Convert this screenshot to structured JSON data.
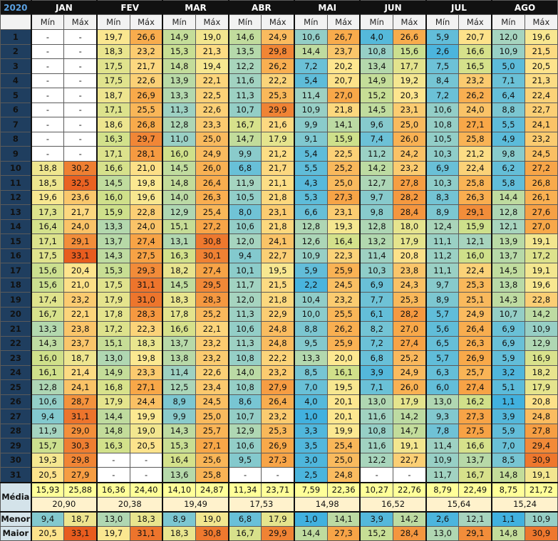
{
  "year": "2020",
  "months": [
    "JAN",
    "FEV",
    "MAR",
    "ABR",
    "MAI",
    "JUN",
    "JUL",
    "AGO"
  ],
  "sub_labels": {
    "min": "Mín",
    "max": "Máx"
  },
  "days": [
    [
      [
        "-",
        "-"
      ],
      [
        "19,7",
        "26,6"
      ],
      [
        "14,9",
        "19,0"
      ],
      [
        "14,6",
        "24,9"
      ],
      [
        "10,6",
        "26,7"
      ],
      [
        "4,0",
        "26,6"
      ],
      [
        "5,9",
        "20,7"
      ],
      [
        "12,0",
        "19,6"
      ]
    ],
    [
      [
        "-",
        "-"
      ],
      [
        "18,3",
        "23,2"
      ],
      [
        "15,3",
        "21,3"
      ],
      [
        "13,5",
        "29,8"
      ],
      [
        "14,4",
        "23,7"
      ],
      [
        "10,8",
        "15,6"
      ],
      [
        "2,6",
        "16,6"
      ],
      [
        "10,9",
        "21,5"
      ]
    ],
    [
      [
        "-",
        "-"
      ],
      [
        "17,5",
        "21,7"
      ],
      [
        "14,8",
        "19,4"
      ],
      [
        "12,2",
        "26,2"
      ],
      [
        "7,2",
        "20,2"
      ],
      [
        "13,4",
        "17,7"
      ],
      [
        "7,5",
        "16,5"
      ],
      [
        "5,0",
        "20,5"
      ]
    ],
    [
      [
        "-",
        "-"
      ],
      [
        "17,5",
        "22,6"
      ],
      [
        "13,9",
        "22,1"
      ],
      [
        "11,6",
        "22,2"
      ],
      [
        "5,4",
        "20,7"
      ],
      [
        "14,9",
        "19,2"
      ],
      [
        "8,4",
        "23,2"
      ],
      [
        "7,1",
        "21,3"
      ]
    ],
    [
      [
        "-",
        "-"
      ],
      [
        "18,7",
        "26,9"
      ],
      [
        "13,3",
        "22,5"
      ],
      [
        "11,3",
        "25,3"
      ],
      [
        "11,4",
        "27,0"
      ],
      [
        "15,2",
        "20,3"
      ],
      [
        "7,2",
        "26,2"
      ],
      [
        "6,4",
        "22,4"
      ]
    ],
    [
      [
        "-",
        "-"
      ],
      [
        "17,1",
        "25,5"
      ],
      [
        "11,3",
        "22,6"
      ],
      [
        "10,7",
        "29,9"
      ],
      [
        "10,9",
        "21,8"
      ],
      [
        "14,5",
        "23,1"
      ],
      [
        "10,6",
        "24,0"
      ],
      [
        "8,8",
        "22,7"
      ]
    ],
    [
      [
        "-",
        "-"
      ],
      [
        "18,6",
        "26,8"
      ],
      [
        "12,8",
        "23,3"
      ],
      [
        "16,7",
        "21,6"
      ],
      [
        "9,9",
        "14,1"
      ],
      [
        "9,6",
        "25,0"
      ],
      [
        "10,8",
        "27,1"
      ],
      [
        "5,5",
        "24,1"
      ]
    ],
    [
      [
        "-",
        "-"
      ],
      [
        "16,3",
        "29,7"
      ],
      [
        "11,0",
        "25,0"
      ],
      [
        "14,7",
        "17,9"
      ],
      [
        "9,1",
        "15,9"
      ],
      [
        "7,4",
        "26,0"
      ],
      [
        "10,5",
        "25,8"
      ],
      [
        "4,9",
        "23,2"
      ]
    ],
    [
      [
        "-",
        "-"
      ],
      [
        "17,1",
        "28,1"
      ],
      [
        "16,0",
        "24,9"
      ],
      [
        "9,9",
        "21,2"
      ],
      [
        "5,4",
        "22,5"
      ],
      [
        "11,2",
        "24,2"
      ],
      [
        "10,3",
        "21,2"
      ],
      [
        "9,8",
        "24,5"
      ]
    ],
    [
      [
        "18,8",
        "30,2"
      ],
      [
        "16,6",
        "21,0"
      ],
      [
        "14,5",
        "26,0"
      ],
      [
        "6,8",
        "21,7"
      ],
      [
        "5,5",
        "25,2"
      ],
      [
        "14,2",
        "23,2"
      ],
      [
        "6,9",
        "22,4"
      ],
      [
        "6,2",
        "27,2"
      ]
    ],
    [
      [
        "18,5",
        "32,5"
      ],
      [
        "14,5",
        "19,8"
      ],
      [
        "14,8",
        "26,4"
      ],
      [
        "11,9",
        "21,1"
      ],
      [
        "4,3",
        "25,0"
      ],
      [
        "12,7",
        "27,8"
      ],
      [
        "10,3",
        "25,8"
      ],
      [
        "5,8",
        "26,8"
      ]
    ],
    [
      [
        "19,6",
        "23,6"
      ],
      [
        "16,0",
        "19,6"
      ],
      [
        "14,0",
        "26,3"
      ],
      [
        "10,5",
        "21,8"
      ],
      [
        "5,3",
        "27,3"
      ],
      [
        "9,7",
        "28,2"
      ],
      [
        "8,3",
        "26,3"
      ],
      [
        "14,4",
        "26,1"
      ]
    ],
    [
      [
        "17,3",
        "21,7"
      ],
      [
        "15,9",
        "22,8"
      ],
      [
        "12,9",
        "25,4"
      ],
      [
        "8,0",
        "23,1"
      ],
      [
        "6,6",
        "23,1"
      ],
      [
        "9,8",
        "28,4"
      ],
      [
        "8,9",
        "29,1"
      ],
      [
        "12,8",
        "27,6"
      ]
    ],
    [
      [
        "16,4",
        "24,0"
      ],
      [
        "13,3",
        "24,0"
      ],
      [
        "15,1",
        "27,2"
      ],
      [
        "10,6",
        "21,8"
      ],
      [
        "12,8",
        "19,3"
      ],
      [
        "12,8",
        "18,0"
      ],
      [
        "12,4",
        "15,9"
      ],
      [
        "12,1",
        "27,0"
      ]
    ],
    [
      [
        "17,1",
        "29,1"
      ],
      [
        "13,7",
        "27,4"
      ],
      [
        "13,1",
        "30,8"
      ],
      [
        "12,0",
        "24,1"
      ],
      [
        "12,6",
        "16,4"
      ],
      [
        "13,2",
        "17,9"
      ],
      [
        "11,1",
        "12,1"
      ],
      [
        "13,9",
        "19,1"
      ]
    ],
    [
      [
        "17,5",
        "33,1"
      ],
      [
        "14,3",
        "27,5"
      ],
      [
        "16,3",
        "30,1"
      ],
      [
        "9,4",
        "22,7"
      ],
      [
        "10,9",
        "22,3"
      ],
      [
        "11,4",
        "20,8"
      ],
      [
        "11,2",
        "16,0"
      ],
      [
        "13,7",
        "17,2"
      ]
    ],
    [
      [
        "15,6",
        "20,4"
      ],
      [
        "15,3",
        "29,3"
      ],
      [
        "18,2",
        "27,4"
      ],
      [
        "10,1",
        "19,5"
      ],
      [
        "5,9",
        "25,9"
      ],
      [
        "10,3",
        "23,8"
      ],
      [
        "11,1",
        "22,4"
      ],
      [
        "14,5",
        "19,1"
      ]
    ],
    [
      [
        "15,6",
        "21,0"
      ],
      [
        "17,5",
        "31,1"
      ],
      [
        "14,5",
        "29,5"
      ],
      [
        "11,7",
        "21,5"
      ],
      [
        "2,2",
        "24,5"
      ],
      [
        "6,9",
        "24,3"
      ],
      [
        "9,7",
        "25,3"
      ],
      [
        "13,8",
        "19,6"
      ]
    ],
    [
      [
        "17,4",
        "23,2"
      ],
      [
        "17,9",
        "31,0"
      ],
      [
        "18,3",
        "28,3"
      ],
      [
        "12,0",
        "21,8"
      ],
      [
        "10,4",
        "23,2"
      ],
      [
        "7,7",
        "25,3"
      ],
      [
        "8,9",
        "25,1"
      ],
      [
        "14,3",
        "22,8"
      ]
    ],
    [
      [
        "16,7",
        "22,1"
      ],
      [
        "17,8",
        "28,3"
      ],
      [
        "17,8",
        "25,2"
      ],
      [
        "11,3",
        "22,9"
      ],
      [
        "10,0",
        "25,5"
      ],
      [
        "6,1",
        "28,2"
      ],
      [
        "5,7",
        "24,9"
      ],
      [
        "10,7",
        "14,2"
      ]
    ],
    [
      [
        "13,3",
        "23,8"
      ],
      [
        "17,2",
        "22,3"
      ],
      [
        "16,6",
        "22,1"
      ],
      [
        "10,6",
        "24,8"
      ],
      [
        "8,8",
        "26,2"
      ],
      [
        "8,2",
        "27,0"
      ],
      [
        "5,6",
        "26,4"
      ],
      [
        "6,9",
        "10,9"
      ]
    ],
    [
      [
        "14,3",
        "23,7"
      ],
      [
        "15,1",
        "18,3"
      ],
      [
        "13,7",
        "23,2"
      ],
      [
        "11,3",
        "24,8"
      ],
      [
        "9,5",
        "25,9"
      ],
      [
        "7,2",
        "27,4"
      ],
      [
        "6,5",
        "26,3"
      ],
      [
        "6,9",
        "12,9"
      ]
    ],
    [
      [
        "16,0",
        "18,7"
      ],
      [
        "13,0",
        "19,8"
      ],
      [
        "13,8",
        "23,2"
      ],
      [
        "10,8",
        "22,2"
      ],
      [
        "13,3",
        "20,0"
      ],
      [
        "6,8",
        "25,2"
      ],
      [
        "5,7",
        "26,9"
      ],
      [
        "5,9",
        "16,9"
      ]
    ],
    [
      [
        "16,1",
        "21,4"
      ],
      [
        "14,9",
        "23,3"
      ],
      [
        "11,4",
        "22,6"
      ],
      [
        "14,0",
        "23,2"
      ],
      [
        "8,5",
        "16,1"
      ],
      [
        "3,9",
        "24,9"
      ],
      [
        "6,3",
        "25,7"
      ],
      [
        "3,2",
        "18,2"
      ]
    ],
    [
      [
        "12,8",
        "24,1"
      ],
      [
        "16,8",
        "27,1"
      ],
      [
        "12,5",
        "23,4"
      ],
      [
        "10,8",
        "27,9"
      ],
      [
        "7,0",
        "19,5"
      ],
      [
        "7,1",
        "26,0"
      ],
      [
        "6,0",
        "27,4"
      ],
      [
        "5,1",
        "17,9"
      ]
    ],
    [
      [
        "10,6",
        "28,7"
      ],
      [
        "17,9",
        "24,4"
      ],
      [
        "8,9",
        "24,5"
      ],
      [
        "8,6",
        "26,4"
      ],
      [
        "4,0",
        "20,1"
      ],
      [
        "13,0",
        "17,9"
      ],
      [
        "13,0",
        "16,2"
      ],
      [
        "1,1",
        "20,8"
      ]
    ],
    [
      [
        "9,4",
        "31,1"
      ],
      [
        "14,4",
        "19,9"
      ],
      [
        "9,9",
        "25,0"
      ],
      [
        "10,7",
        "23,2"
      ],
      [
        "1,0",
        "20,1"
      ],
      [
        "11,6",
        "14,2"
      ],
      [
        "9,3",
        "27,3"
      ],
      [
        "3,9",
        "24,8"
      ]
    ],
    [
      [
        "11,9",
        "29,0"
      ],
      [
        "14,8",
        "19,0"
      ],
      [
        "14,3",
        "25,7"
      ],
      [
        "12,9",
        "25,3"
      ],
      [
        "3,3",
        "19,9"
      ],
      [
        "10,8",
        "14,7"
      ],
      [
        "7,8",
        "27,5"
      ],
      [
        "5,9",
        "27,8"
      ]
    ],
    [
      [
        "15,7",
        "30,3"
      ],
      [
        "16,3",
        "20,5"
      ],
      [
        "15,3",
        "27,1"
      ],
      [
        "10,6",
        "26,9"
      ],
      [
        "3,5",
        "25,4"
      ],
      [
        "11,6",
        "19,1"
      ],
      [
        "11,4",
        "16,6"
      ],
      [
        "7,0",
        "29,4"
      ]
    ],
    [
      [
        "19,3",
        "29,8"
      ],
      [
        "-",
        "-"
      ],
      [
        "16,4",
        "25,6"
      ],
      [
        "9,5",
        "27,3"
      ],
      [
        "3,0",
        "25,0"
      ],
      [
        "12,2",
        "22,7"
      ],
      [
        "10,9",
        "13,7"
      ],
      [
        "8,5",
        "30,9"
      ]
    ],
    [
      [
        "20,5",
        "27,9"
      ],
      [
        "-",
        "-"
      ],
      [
        "13,6",
        "25,8"
      ],
      [
        "-",
        "-"
      ],
      [
        "2,5",
        "24,8"
      ],
      [
        "-",
        "-"
      ],
      [
        "11,7",
        "16,7"
      ],
      [
        "14,8",
        "19,1"
      ]
    ]
  ],
  "stats": {
    "media_label": "Média",
    "menor_label": "Menor",
    "maior_label": "Maior",
    "media": [
      [
        "15,93",
        "25,88"
      ],
      [
        "16,36",
        "24,40"
      ],
      [
        "14,10",
        "24,87"
      ],
      [
        "11,34",
        "23,71"
      ],
      [
        "7,59",
        "22,36"
      ],
      [
        "10,27",
        "22,76"
      ],
      [
        "8,79",
        "22,49"
      ],
      [
        "8,75",
        "21,72"
      ]
    ],
    "media_total": [
      "20,90",
      "20,38",
      "19,49",
      "17,53",
      "14,98",
      "16,52",
      "15,64",
      "15,24"
    ],
    "menor": [
      [
        "9,4",
        "18,7"
      ],
      [
        "13,0",
        "18,3"
      ],
      [
        "8,9",
        "19,0"
      ],
      [
        "6,8",
        "17,9"
      ],
      [
        "1,0",
        "14,1"
      ],
      [
        "3,9",
        "14,2"
      ],
      [
        "2,6",
        "12,1"
      ],
      [
        "1,1",
        "10,9"
      ]
    ],
    "maior": [
      [
        "20,5",
        "33,1"
      ],
      [
        "19,7",
        "31,1"
      ],
      [
        "18,3",
        "30,8"
      ],
      [
        "16,7",
        "29,9"
      ],
      [
        "14,4",
        "27,3"
      ],
      [
        "15,2",
        "28,4"
      ],
      [
        "13,0",
        "29,1"
      ],
      [
        "14,8",
        "30,9"
      ]
    ]
  },
  "palette": {
    "header_bg": "#111111",
    "year_color": "#5aa0e0",
    "day_label_bg": "#1f3e5f",
    "scale": [
      "#3aaee0",
      "#70c3d6",
      "#a6d4bf",
      "#cfe08a",
      "#fde891",
      "#f8a849",
      "#e85c1e"
    ]
  }
}
